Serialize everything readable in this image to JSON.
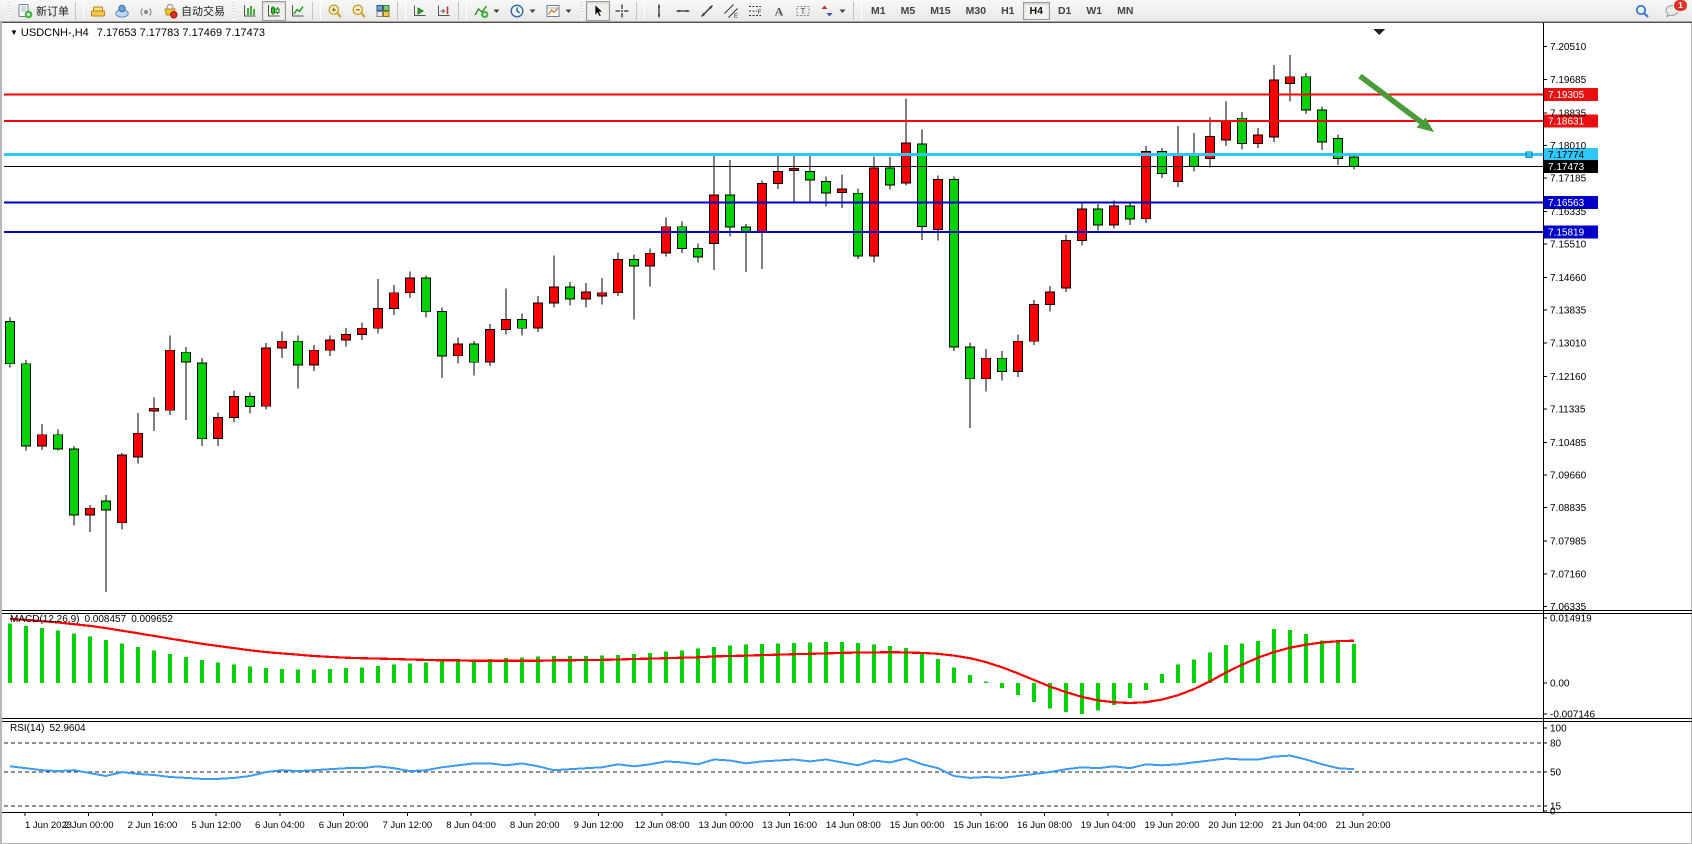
{
  "toolbar": {
    "new_order_label": "新订单",
    "autotrade_label": "自动交易",
    "periods": [
      "M1",
      "M5",
      "M15",
      "M30",
      "H1",
      "H4",
      "D1",
      "W1",
      "MN"
    ],
    "active_period": "H4",
    "notification_count": "1"
  },
  "chart": {
    "symbol_label": "USDCNH-,H4",
    "quote_line": "7.17653 7.17783 7.17469 7.17473",
    "collapse_glyph": "▼"
  },
  "chart_data": {
    "type": "candlestick",
    "title": "USDCNH-,H4",
    "timeframe": "H4",
    "quote": {
      "open": "7.17653",
      "high": "7.17783",
      "low": "7.17469",
      "close": "7.17473"
    },
    "bull_color": "#fa0000",
    "bear_color": "#00d200",
    "outline_color": "#000000",
    "candles": [
      [
        7.1355,
        7.1365,
        7.1238,
        7.1248
      ],
      [
        7.1248,
        7.1258,
        7.1028,
        7.104
      ],
      [
        7.104,
        7.1095,
        7.103,
        7.1068
      ],
      [
        7.1068,
        7.1082,
        7.1028,
        7.1032
      ],
      [
        7.1032,
        7.104,
        7.0838,
        7.0865
      ],
      [
        7.0865,
        7.089,
        7.0822,
        7.0882
      ],
      [
        7.09,
        7.0915,
        7.067,
        7.0878
      ],
      [
        7.0845,
        7.1022,
        7.0828,
        7.1017
      ],
      [
        7.1012,
        7.1123,
        7.0995,
        7.1072
      ],
      [
        7.1128,
        7.1162,
        7.1078,
        7.1135
      ],
      [
        7.113,
        7.132,
        7.1118,
        7.1282
      ],
      [
        7.1277,
        7.129,
        7.1106,
        7.1252
      ],
      [
        7.125,
        7.1262,
        7.104,
        7.1058
      ],
      [
        7.1058,
        7.1125,
        7.104,
        7.1112
      ],
      [
        7.1112,
        7.118,
        7.11,
        7.1165
      ],
      [
        7.1165,
        7.1175,
        7.1122,
        7.114
      ],
      [
        7.114,
        7.13,
        7.1132,
        7.1288
      ],
      [
        7.1288,
        7.133,
        7.1262,
        7.1305
      ],
      [
        7.1305,
        7.132,
        7.1185,
        7.1245
      ],
      [
        7.1245,
        7.1295,
        7.123,
        7.1282
      ],
      [
        7.1282,
        7.132,
        7.1268,
        7.1308
      ],
      [
        7.1308,
        7.1338,
        7.1292,
        7.1322
      ],
      [
        7.1322,
        7.1352,
        7.1308,
        7.1338
      ],
      [
        7.1338,
        7.1462,
        7.1325,
        7.1388
      ],
      [
        7.1388,
        7.1448,
        7.1372,
        7.1428
      ],
      [
        7.1428,
        7.1482,
        7.1415,
        7.1465
      ],
      [
        7.1465,
        7.1472,
        7.1365,
        7.138
      ],
      [
        7.138,
        7.139,
        7.1212,
        7.1268
      ],
      [
        7.1268,
        7.1315,
        7.1248,
        7.1298
      ],
      [
        7.1298,
        7.1305,
        7.1218,
        7.1252
      ],
      [
        7.1252,
        7.1348,
        7.1242,
        7.1335
      ],
      [
        7.1335,
        7.1438,
        7.1322,
        7.136
      ],
      [
        7.136,
        7.1375,
        7.132,
        7.1338
      ],
      [
        7.1338,
        7.142,
        7.1328,
        7.1402
      ],
      [
        7.1402,
        7.1522,
        7.139,
        7.1442
      ],
      [
        7.1442,
        7.1455,
        7.1395,
        7.1412
      ],
      [
        7.1412,
        7.1452,
        7.139,
        7.143
      ],
      [
        7.142,
        7.1465,
        7.1398,
        7.1428
      ],
      [
        7.1428,
        7.153,
        7.142,
        7.1512
      ],
      [
        7.1512,
        7.1525,
        7.136,
        7.1495
      ],
      [
        7.1495,
        7.154,
        7.1444,
        7.1528
      ],
      [
        7.1528,
        7.1618,
        7.152,
        7.1595
      ],
      [
        7.1595,
        7.1608,
        7.1528,
        7.154
      ],
      [
        7.154,
        7.1552,
        7.1505,
        7.1518
      ],
      [
        7.1553,
        7.1778,
        7.1486,
        7.1675
      ],
      [
        7.1675,
        7.1764,
        7.157,
        7.1594
      ],
      [
        7.1594,
        7.1602,
        7.148,
        7.1582
      ],
      [
        7.1582,
        7.1712,
        7.1488,
        7.1705
      ],
      [
        7.1705,
        7.1777,
        7.169,
        7.1735
      ],
      [
        7.1738,
        7.1777,
        7.1655,
        7.1742
      ],
      [
        7.1735,
        7.1775,
        7.1658,
        7.1714
      ],
      [
        7.171,
        7.1722,
        7.1646,
        7.168
      ],
      [
        7.1682,
        7.1727,
        7.1642,
        7.169
      ],
      [
        7.168,
        7.1692,
        7.1513,
        7.1521
      ],
      [
        7.1521,
        7.1773,
        7.1505,
        7.1744
      ],
      [
        7.1744,
        7.1771,
        7.1689,
        7.1701
      ],
      [
        7.1706,
        7.192,
        7.17,
        7.1807
      ],
      [
        7.1805,
        7.1841,
        7.1562,
        7.1596
      ],
      [
        7.1588,
        7.1725,
        7.156,
        7.1714
      ],
      [
        7.1714,
        7.1722,
        7.128,
        7.129
      ],
      [
        7.129,
        7.1302,
        7.1085,
        7.121
      ],
      [
        7.121,
        7.1285,
        7.1178,
        7.1262
      ],
      [
        7.1262,
        7.128,
        7.1205,
        7.1228
      ],
      [
        7.1228,
        7.1322,
        7.1215,
        7.1305
      ],
      [
        7.1305,
        7.141,
        7.1295,
        7.1398
      ],
      [
        7.1398,
        7.1445,
        7.138,
        7.143
      ],
      [
        7.144,
        7.1575,
        7.143,
        7.156
      ],
      [
        7.156,
        7.1658,
        7.1548,
        7.164
      ],
      [
        7.164,
        7.1652,
        7.1585,
        7.16
      ],
      [
        7.16,
        7.1662,
        7.159,
        7.1648
      ],
      [
        7.1648,
        7.1655,
        7.16,
        7.1615
      ],
      [
        7.1615,
        7.18,
        7.1605,
        7.1785
      ],
      [
        7.1785,
        7.1795,
        7.1718,
        7.173
      ],
      [
        7.171,
        7.185,
        7.1695,
        7.1777
      ],
      [
        7.1777,
        7.1832,
        7.1735,
        7.1748
      ],
      [
        7.1768,
        7.1872,
        7.1745,
        7.1823
      ],
      [
        7.1815,
        7.1912,
        7.18,
        7.1861
      ],
      [
        7.187,
        7.1885,
        7.179,
        7.1806
      ],
      [
        7.1806,
        7.1845,
        7.1795,
        7.1827
      ],
      [
        7.1823,
        7.2005,
        7.181,
        7.1967
      ],
      [
        7.1958,
        7.203,
        7.1912,
        7.1975
      ],
      [
        7.1975,
        7.1985,
        7.188,
        7.1891
      ],
      [
        7.1891,
        7.19,
        7.1789,
        7.181
      ],
      [
        7.1819,
        7.1828,
        7.1751,
        7.1768
      ],
      [
        7.1772,
        7.1778,
        7.174,
        7.17473
      ]
    ],
    "price_axis": {
      "ticks": [
        "7.20510",
        "7.19685",
        "7.18835",
        "7.18010",
        "7.17185",
        "7.16335",
        "7.15510",
        "7.14660",
        "7.13835",
        "7.13010",
        "7.12160",
        "7.11335",
        "7.10485",
        "7.09660",
        "7.08835",
        "7.07985",
        "7.07160",
        "7.06335"
      ],
      "max": 7.2051,
      "min": 7.06335
    },
    "time_axis": [
      "1 Jun 2023",
      "2 Jun 00:00",
      "2 Jun 16:00",
      "5 Jun 12:00",
      "6 Jun 04:00",
      "6 Jun 20:00",
      "7 Jun 12:00",
      "8 Jun 04:00",
      "8 Jun 20:00",
      "9 Jun 12:00",
      "12 Jun 08:00",
      "13 Jun 00:00",
      "13 Jun 16:00",
      "14 Jun 08:00",
      "15 Jun 00:00",
      "15 Jun 16:00",
      "16 Jun 08:00",
      "19 Jun 04:00",
      "19 Jun 20:00",
      "20 Jun 12:00",
      "21 Jun 04:00",
      "21 Jun 20:00"
    ],
    "levels": [
      {
        "price": 7.19305,
        "label": "7.19305",
        "line_color": "#fe0000",
        "badge_color": "#e81010",
        "text_color": "#ffffff",
        "width": 2,
        "handle": false
      },
      {
        "price": 7.18631,
        "label": "7.18631",
        "line_color": "#fe0000",
        "badge_color": "#e81010",
        "text_color": "#ffffff",
        "width": 2,
        "handle": false
      },
      {
        "price": 7.17774,
        "label": "7.17774",
        "line_color": "#2fc7f7",
        "badge_color": "#2fc7f7",
        "text_color": "#000000",
        "width": 3,
        "handle": true
      },
      {
        "price": 7.17473,
        "label": "7.17473",
        "line_color": "#000000",
        "badge_color": "#000000",
        "text_color": "#ffffff",
        "width": 1,
        "handle": false
      },
      {
        "price": 7.16563,
        "label": "7.16563",
        "line_color": "#0000c8",
        "badge_color": "#0000c8",
        "text_color": "#ffffff",
        "width": 2,
        "handle": false
      },
      {
        "price": 7.15819,
        "label": "7.15819",
        "line_color": "#0000c8",
        "badge_color": "#0000c8",
        "text_color": "#ffffff",
        "width": 2,
        "handle": false
      }
    ],
    "current_price": 7.17473,
    "indicators": {
      "macd": {
        "label": "MACD(12,26,9)",
        "value_1": "0.008457",
        "value_2": "0.009652",
        "hist_color": "#00d200",
        "signal_color": "#fe0000",
        "axis_ticks": [
          {
            "label": "0.014919",
            "value": 0.014919
          },
          {
            "label": "0.00",
            "value": 0
          },
          {
            "label": "-0.007146",
            "value": -0.007146
          }
        ],
        "histogram": [
          0.0136,
          0.0131,
          0.0126,
          0.012,
          0.0114,
          0.0107,
          0.0099,
          0.0091,
          0.0083,
          0.0075,
          0.0067,
          0.006,
          0.0053,
          0.0047,
          0.0042,
          0.0038,
          0.0034,
          0.0032,
          0.0031,
          0.0031,
          0.0032,
          0.0034,
          0.0036,
          0.0039,
          0.0042,
          0.0045,
          0.0047,
          0.0049,
          0.0051,
          0.0053,
          0.0055,
          0.0057,
          0.0059,
          0.0061,
          0.0062,
          0.0062,
          0.0062,
          0.0063,
          0.0064,
          0.0066,
          0.0069,
          0.0072,
          0.0075,
          0.0079,
          0.0083,
          0.0086,
          0.0088,
          0.009,
          0.0091,
          0.0092,
          0.0093,
          0.0094,
          0.0094,
          0.0092,
          0.0088,
          0.0085,
          0.008,
          0.0068,
          0.0055,
          0.0036,
          0.0018,
          0.0004,
          -0.0012,
          -0.0028,
          -0.0044,
          -0.0058,
          -0.0066,
          -0.0071,
          -0.0063,
          -0.0051,
          -0.0034,
          -0.0016,
          0.0021,
          0.0042,
          0.0054,
          0.007,
          0.0087,
          0.0091,
          0.0096,
          0.0124,
          0.0122,
          0.0113,
          0.0098,
          0.0096,
          0.0089
        ],
        "signal": [
          0.0147,
          0.0145,
          0.0142,
          0.0139,
          0.0135,
          0.0131,
          0.0126,
          0.012,
          0.0114,
          0.0108,
          0.0102,
          0.0096,
          0.009,
          0.0085,
          0.008,
          0.0075,
          0.0071,
          0.0068,
          0.0065,
          0.0062,
          0.006,
          0.0058,
          0.0057,
          0.0056,
          0.0055,
          0.0054,
          0.0053,
          0.0052,
          0.0052,
          0.0051,
          0.0051,
          0.0051,
          0.0051,
          0.0051,
          0.0052,
          0.0052,
          0.0053,
          0.0053,
          0.0054,
          0.0055,
          0.0056,
          0.0057,
          0.0058,
          0.0059,
          0.0061,
          0.0062,
          0.0063,
          0.0064,
          0.0065,
          0.0066,
          0.0067,
          0.0068,
          0.0069,
          0.007,
          0.007,
          0.0071,
          0.007,
          0.0069,
          0.0067,
          0.0063,
          0.0057,
          0.0048,
          0.0036,
          0.0022,
          0.0007,
          -0.0008,
          -0.0021,
          -0.0032,
          -0.004,
          -0.0044,
          -0.0046,
          -0.0044,
          -0.0038,
          -0.0028,
          -0.0014,
          0.0004,
          0.0024,
          0.0042,
          0.0058,
          0.0071,
          0.0081,
          0.0088,
          0.0093,
          0.0096,
          0.0097
        ]
      },
      "rsi": {
        "label": "RSI(14)",
        "value": "52.9604",
        "line_color": "#3e9bf4",
        "levels": [
          80,
          50,
          15
        ],
        "axis_ticks": [
          {
            "label": "100",
            "value": 100
          },
          {
            "label": "80",
            "value": 80
          },
          {
            "label": "50",
            "value": 50
          },
          {
            "label": "15",
            "value": 15
          },
          {
            "label": "0",
            "value": 0
          }
        ],
        "series": [
          56,
          54,
          52,
          51,
          52,
          49,
          46,
          50,
          48,
          47,
          45,
          44,
          43,
          43,
          44,
          46,
          50,
          52,
          51,
          52,
          53,
          54,
          54,
          56,
          54,
          51,
          52,
          55,
          57,
          59,
          59,
          57,
          59,
          56,
          52,
          53,
          54,
          55,
          58,
          56,
          58,
          61,
          60,
          58,
          63,
          62,
          59,
          61,
          62,
          63,
          61,
          63,
          60,
          57,
          62,
          60,
          64,
          58,
          54,
          46,
          44,
          45,
          44,
          46,
          48,
          50,
          53,
          55,
          54,
          56,
          54,
          58,
          57,
          58,
          60,
          62,
          64,
          63,
          63,
          66,
          67,
          63,
          58,
          54,
          53
        ]
      }
    },
    "annotations": {
      "trend_arrow": {
        "direction": "down",
        "color": "#4c9b3a"
      },
      "shift_marker": {
        "shape": "triangle-down",
        "color": "#222222"
      }
    }
  }
}
